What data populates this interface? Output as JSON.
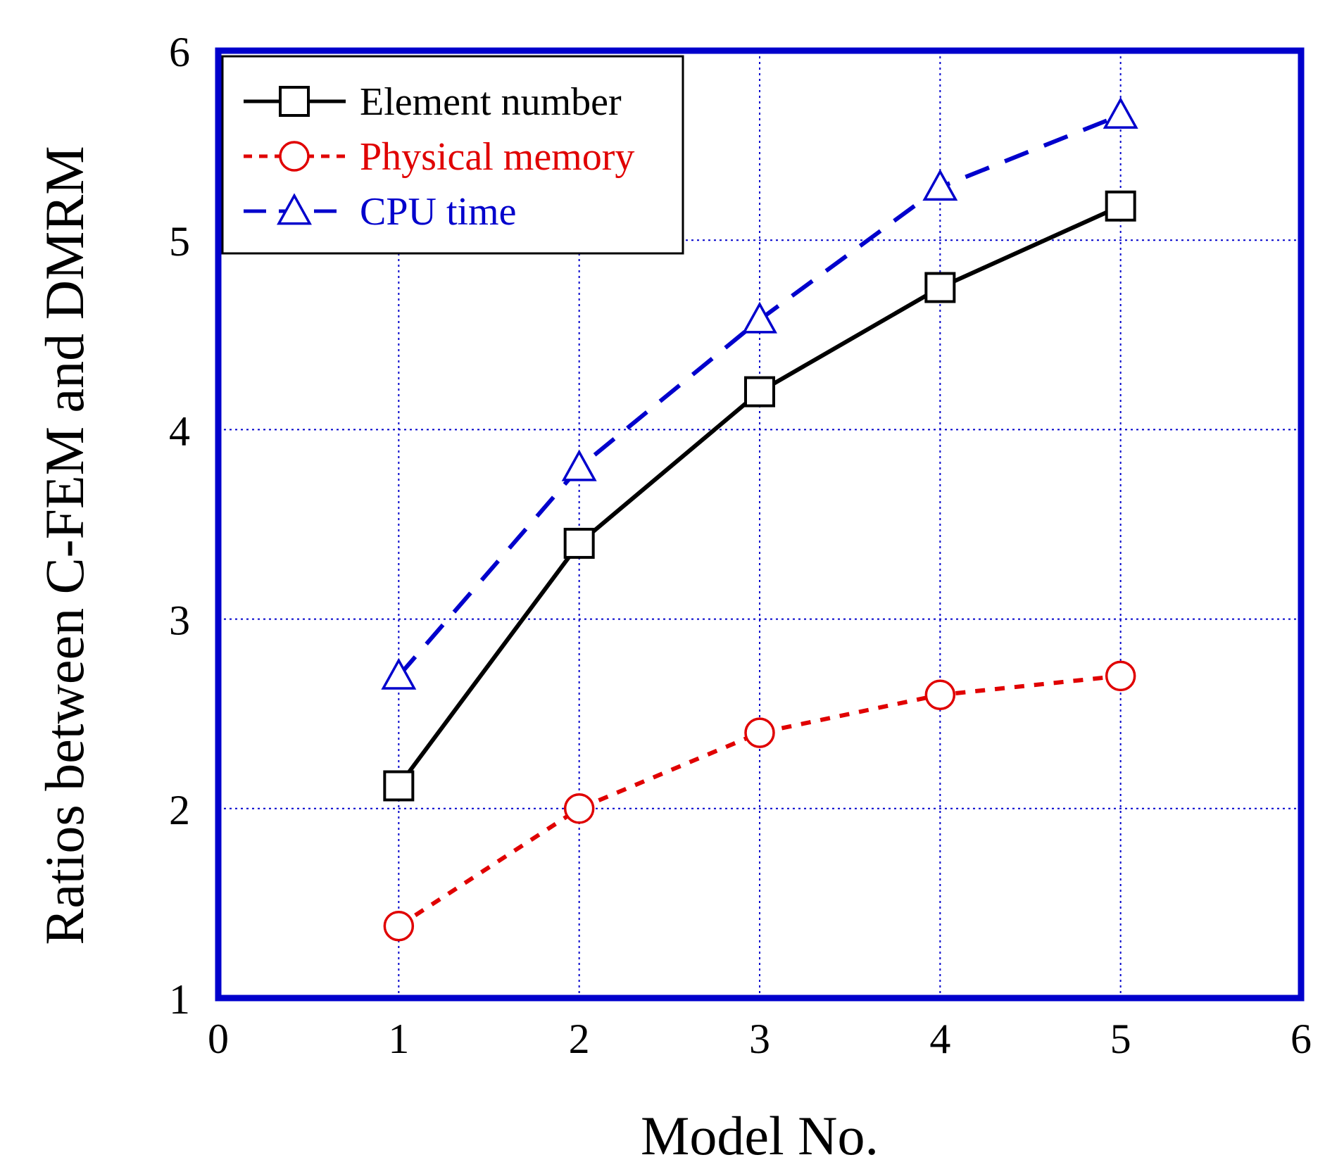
{
  "chart_data": {
    "type": "line",
    "title": "",
    "xlabel": "Model No.",
    "ylabel": "Ratios between C-FEM and DMRM",
    "xlim": [
      0,
      6
    ],
    "ylim": [
      1,
      6
    ],
    "xticks": [
      "0",
      "1",
      "2",
      "3",
      "4",
      "5",
      "6"
    ],
    "yticks": [
      "1",
      "2",
      "3",
      "4",
      "5",
      "6"
    ],
    "grid": true,
    "legend_position": "top-left",
    "x": [
      1,
      2,
      3,
      4,
      5
    ],
    "series": [
      {
        "name": "Element number",
        "values": [
          2.12,
          3.4,
          4.2,
          4.75,
          5.18
        ],
        "color": "#000000",
        "dash": "solid",
        "marker": "square"
      },
      {
        "name": "Physical memory",
        "values": [
          1.38,
          2.0,
          2.4,
          2.6,
          2.7
        ],
        "color": "#e00000",
        "dash": "dotted",
        "marker": "circle"
      },
      {
        "name": "CPU time",
        "values": [
          2.7,
          3.8,
          4.58,
          5.28,
          5.66
        ],
        "color": "#0000cc",
        "dash": "dashed",
        "marker": "triangle"
      }
    ],
    "frame_color": "#0000cc",
    "grid_color": "#0000cc"
  }
}
